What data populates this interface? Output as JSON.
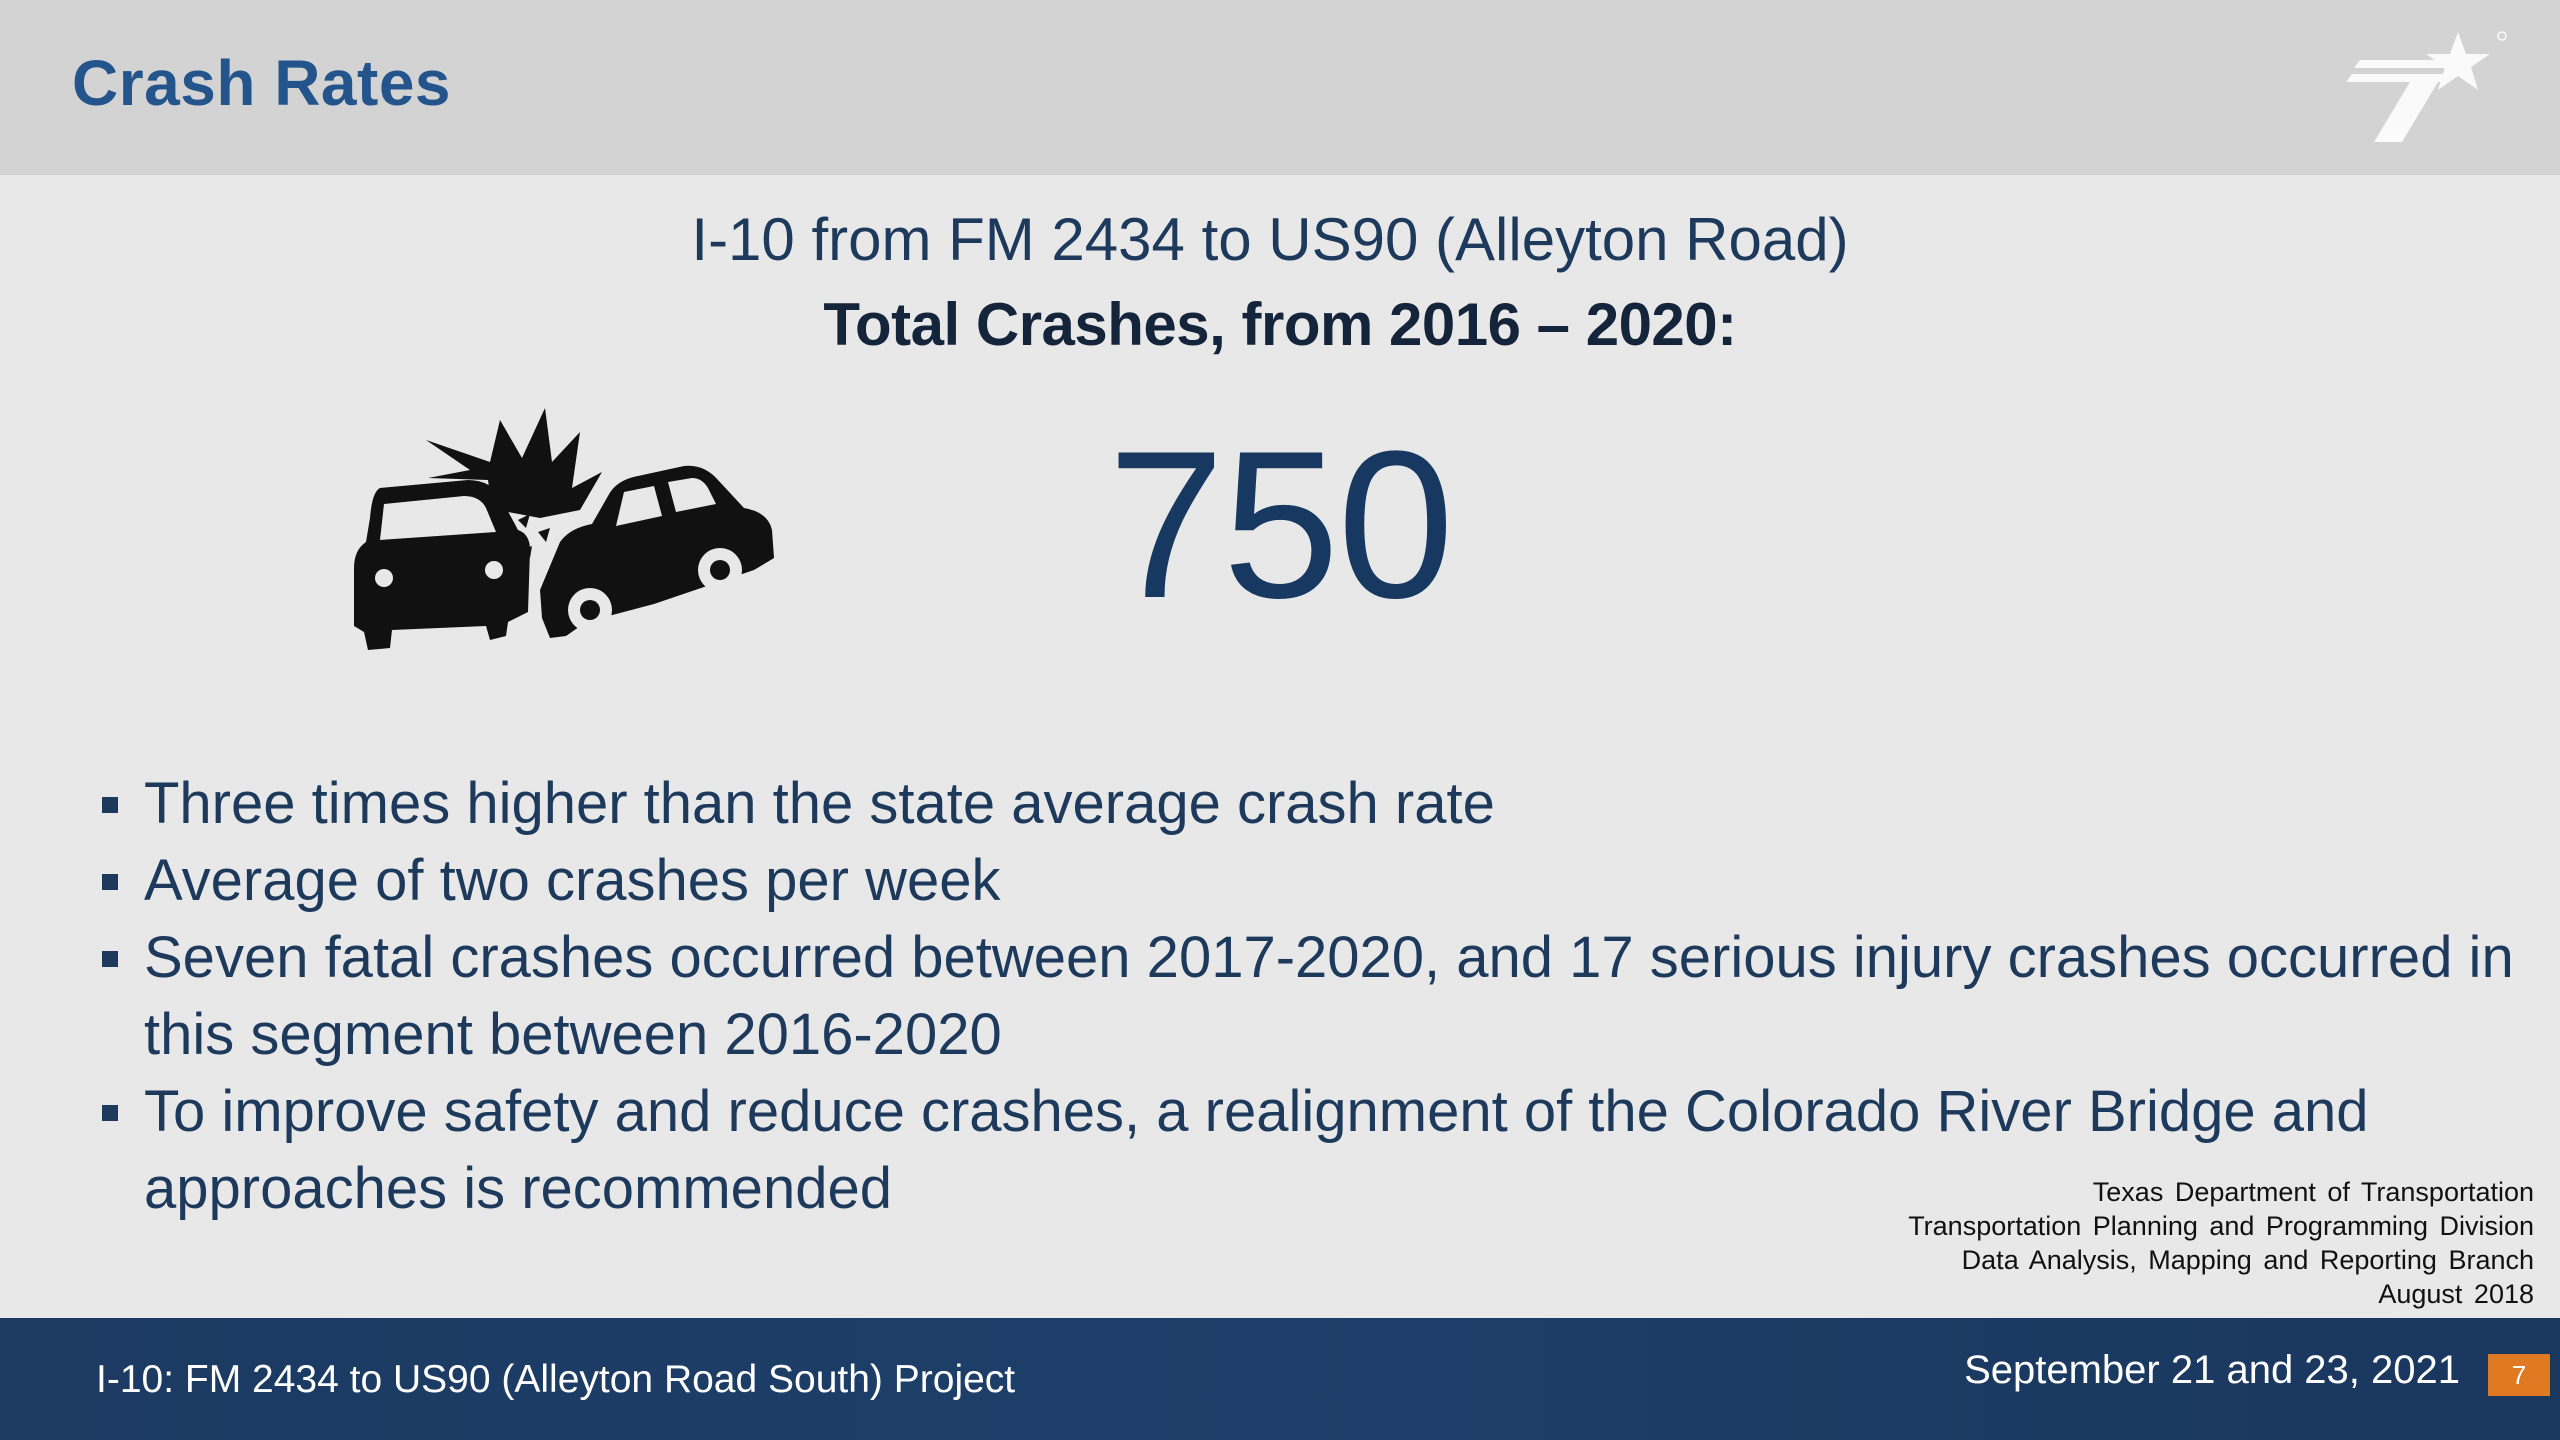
{
  "header": {
    "title": "Crash Rates",
    "logo_icon": "txdot-star-logo-icon"
  },
  "main": {
    "subtitle": "I-10 from FM 2434 to US90 (Alleyton Road)",
    "total_label": "Total Crashes, from 2016 – 2020:",
    "total_value": "750",
    "illustration_icon": "car-crash-icon",
    "bullets": [
      "Three times higher than the state average crash rate",
      "Average of two crashes per week",
      "Seven fatal crashes occurred between 2017-2020, and 17 serious injury crashes occurred in this segment between 2016-2020",
      "To improve safety and reduce crashes, a realignment of the Colorado River Bridge and approaches is recommended"
    ]
  },
  "source": {
    "line1": "Texas Department of Transportation",
    "line2": "Transportation Planning and Programming Division",
    "line3": "Data Analysis, Mapping and Reporting Branch",
    "line4": "August 2018"
  },
  "footer": {
    "project": "I-10: FM 2434 to US90 (Alleyton Road South) Project",
    "date": "September 21 and 23, 2021",
    "page_number": "7"
  },
  "colors": {
    "header_bg": "#d3d3d3",
    "title_blue": "#24548c",
    "body_bg": "#e8e8e8",
    "footer_navy": "#1c3a62",
    "page_badge": "#e07a22"
  }
}
